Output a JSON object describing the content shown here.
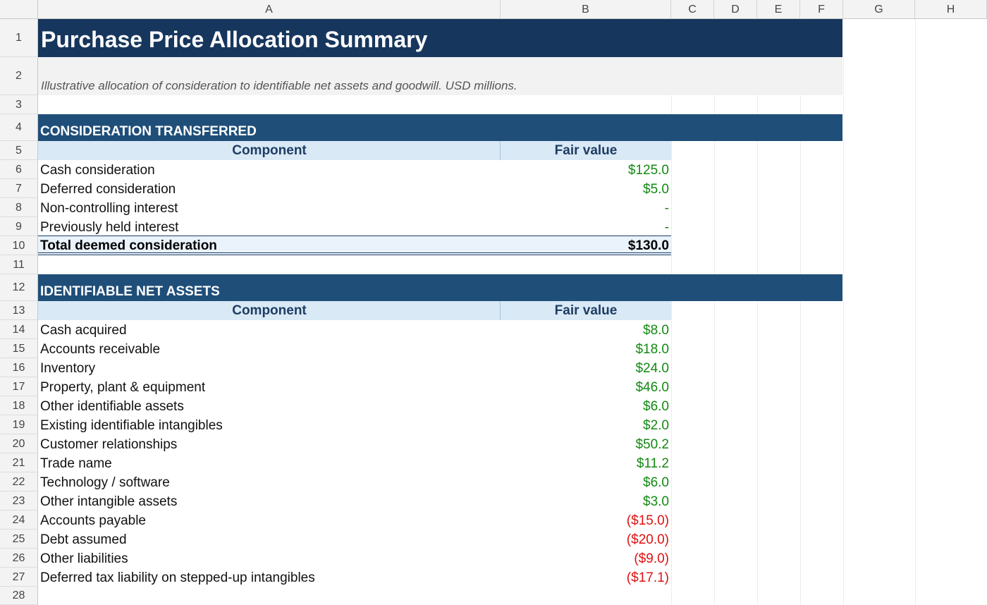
{
  "columns": [
    "A",
    "B",
    "C",
    "D",
    "E",
    "F",
    "G",
    "H"
  ],
  "rows": [
    "1",
    "2",
    "3",
    "4",
    "5",
    "6",
    "7",
    "8",
    "9",
    "10",
    "11",
    "12",
    "13",
    "14",
    "15",
    "16",
    "17",
    "18",
    "19",
    "20",
    "21",
    "22",
    "23",
    "24",
    "25",
    "26",
    "27",
    "28"
  ],
  "title": "Purchase Price Allocation Summary",
  "subtitle": "Illustrative allocation of consideration to identifiable net assets and goodwill. USD millions.",
  "consideration": {
    "section_title": "CONSIDERATION TRANSFERRED",
    "header_component": "Component",
    "header_value": "Fair value",
    "items": [
      {
        "label": "Cash consideration",
        "value": "$125.0"
      },
      {
        "label": "Deferred consideration",
        "value": "$5.0"
      },
      {
        "label": "Non-controlling interest",
        "value": "-"
      },
      {
        "label": "Previously held interest",
        "value": "-"
      }
    ],
    "total_label": "Total deemed consideration",
    "total_value": "$130.0"
  },
  "net_assets": {
    "section_title": "IDENTIFIABLE NET ASSETS",
    "header_component": "Component",
    "header_value": "Fair value",
    "items": [
      {
        "label": "Cash acquired",
        "value": "$8.0"
      },
      {
        "label": "Accounts receivable",
        "value": "$18.0"
      },
      {
        "label": "Inventory",
        "value": "$24.0"
      },
      {
        "label": "Property, plant & equipment",
        "value": "$46.0"
      },
      {
        "label": "Other identifiable assets",
        "value": "$6.0"
      },
      {
        "label": "Existing identifiable intangibles",
        "value": "$2.0"
      },
      {
        "label": "Customer relationships",
        "value": "$50.2"
      },
      {
        "label": "Trade name",
        "value": "$11.2"
      },
      {
        "label": "Technology / software",
        "value": "$6.0"
      },
      {
        "label": "Other intangible assets",
        "value": "$3.0"
      },
      {
        "label": "Accounts payable",
        "value": "($15.0)"
      },
      {
        "label": "Debt assumed",
        "value": "($20.0)"
      },
      {
        "label": "Other liabilities",
        "value": "($9.0)"
      },
      {
        "label": "Deferred tax liability on stepped-up intangibles",
        "value": "($17.1)"
      }
    ]
  },
  "colors": {
    "title_bg": "#17365d",
    "section_bg": "#1f4e79",
    "header_bg": "#d9e9f6",
    "positive": "#128a12",
    "negative": "#e01010"
  }
}
